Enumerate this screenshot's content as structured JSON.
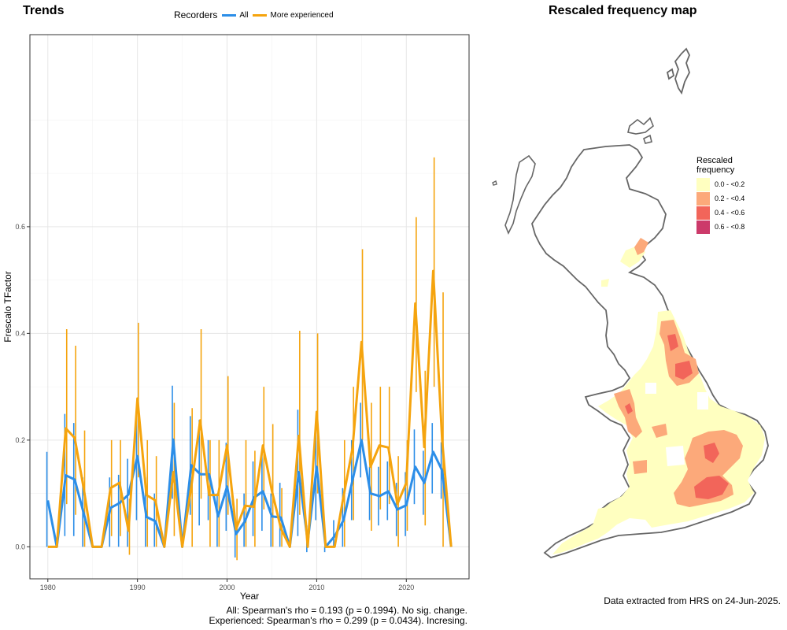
{
  "left_title": "Trends",
  "right_title": "Rescaled frequency map",
  "legend": {
    "title": "Recorders",
    "entries": [
      {
        "label": "All",
        "color": "#2c8ee8"
      },
      {
        "label": "More experienced",
        "color": "#f5a40e"
      }
    ]
  },
  "stats": {
    "all": "All: Spearman's rho = 0.193 (p = 0.1994). No sig. change.",
    "experienced": "Experienced: Spearman's rho = 0.299 (p = 0.0434). Incresing."
  },
  "data_note": "Data extracted from HRS on 24-Jun-2025.",
  "map_legend": {
    "title_line1": "Rescaled",
    "title_line2": "frequency",
    "bins": [
      {
        "label": "0.0 - <0.2",
        "color": "#ffffc0"
      },
      {
        "label": "0.2 - <0.4",
        "color": "#fca97a"
      },
      {
        "label": "0.4 - <0.6",
        "color": "#f2655a"
      },
      {
        "label": "0.6 - <0.8",
        "color": "#cc3a6a"
      }
    ]
  },
  "chart_data": {
    "type": "line",
    "title": "",
    "xlabel": "Year",
    "ylabel": "Frescalo TFactor",
    "xlim": [
      1978,
      2027
    ],
    "ylim": [
      -0.06,
      0.96
    ],
    "x_ticks": [
      1980,
      1990,
      2000,
      2010,
      2020
    ],
    "y_ticks": [
      0.0,
      0.2,
      0.4,
      0.6
    ],
    "y_tick_labels": [
      "0.0",
      "0.2",
      "0.4",
      "0.6"
    ],
    "grid": true,
    "legend_position": "top",
    "x": [
      1980,
      1981,
      1982,
      1983,
      1984,
      1985,
      1986,
      1987,
      1988,
      1989,
      1990,
      1991,
      1992,
      1993,
      1994,
      1995,
      1996,
      1997,
      1998,
      1999,
      2000,
      2001,
      2002,
      2003,
      2004,
      2005,
      2006,
      2007,
      2008,
      2009,
      2010,
      2011,
      2012,
      2013,
      2014,
      2015,
      2016,
      2017,
      2018,
      2019,
      2020,
      2021,
      2022,
      2023,
      2024,
      2025
    ],
    "series": [
      {
        "name": "All",
        "color": "#2c8ee8",
        "values": [
          0.087,
          0.0,
          0.134,
          0.126,
          0.063,
          0.0,
          0.0,
          0.073,
          0.082,
          0.098,
          0.17,
          0.056,
          0.048,
          0.0,
          0.201,
          0.0,
          0.153,
          0.136,
          0.136,
          0.057,
          0.113,
          0.024,
          0.048,
          0.092,
          0.104,
          0.057,
          0.055,
          0.0,
          0.14,
          0.01,
          0.15,
          0.0,
          0.02,
          0.05,
          0.125,
          0.2,
          0.1,
          0.095,
          0.104,
          0.07,
          0.078,
          0.15,
          0.12,
          0.178,
          0.143,
          0.0
        ],
        "lower": [
          0.0,
          0.0,
          0.02,
          0.02,
          0.0,
          0.0,
          0.0,
          0.0,
          0.0,
          0.0,
          0.05,
          0.0,
          0.0,
          0.0,
          0.09,
          0.0,
          0.06,
          0.04,
          0.05,
          0.0,
          0.03,
          -0.02,
          0.0,
          0.02,
          0.03,
          0.0,
          0.0,
          0.0,
          0.02,
          -0.01,
          0.05,
          -0.01,
          0.0,
          0.0,
          0.05,
          0.13,
          0.05,
          0.04,
          0.05,
          0.02,
          0.02,
          0.08,
          0.06,
          0.1,
          0.09,
          0.0
        ],
        "upper": [
          0.178,
          0.0,
          0.249,
          0.232,
          0.13,
          0.0,
          0.0,
          0.13,
          0.135,
          0.165,
          0.26,
          0.13,
          0.1,
          0.0,
          0.302,
          0.0,
          0.245,
          0.238,
          0.2,
          0.1,
          0.195,
          0.06,
          0.1,
          0.16,
          0.18,
          0.1,
          0.12,
          0.0,
          0.257,
          0.04,
          0.225,
          0.0,
          0.05,
          0.11,
          0.2,
          0.27,
          0.15,
          0.15,
          0.16,
          0.12,
          0.14,
          0.22,
          0.18,
          0.232,
          0.196,
          0.0
        ]
      },
      {
        "name": "More experienced",
        "color": "#f5a40e",
        "values": [
          0.0,
          0.0,
          0.222,
          0.204,
          0.11,
          0.0,
          0.0,
          0.11,
          0.12,
          0.03,
          0.278,
          0.097,
          0.087,
          0.0,
          0.14,
          0.0,
          0.112,
          0.237,
          0.097,
          0.097,
          0.19,
          0.033,
          0.077,
          0.075,
          0.19,
          0.105,
          0.035,
          0.0,
          0.208,
          0.0,
          0.253,
          0.0,
          0.0,
          0.095,
          0.185,
          0.384,
          0.15,
          0.19,
          0.186,
          0.08,
          0.12,
          0.456,
          0.187,
          0.517,
          0.2,
          0.0
        ],
        "lower": [
          0.0,
          0.0,
          0.08,
          0.06,
          0.0,
          0.0,
          0.0,
          0.02,
          0.02,
          -0.015,
          0.13,
          0.0,
          0.0,
          0.0,
          0.02,
          0.0,
          0.0,
          0.09,
          0.0,
          0.0,
          0.06,
          -0.025,
          0.0,
          0.0,
          0.07,
          0.0,
          0.0,
          0.0,
          0.06,
          0.0,
          0.1,
          0.0,
          0.0,
          0.0,
          0.05,
          0.2,
          0.03,
          0.07,
          0.08,
          0.0,
          0.03,
          0.29,
          0.04,
          0.3,
          0.0,
          0.0
        ],
        "upper": [
          0.0,
          0.0,
          0.408,
          0.377,
          0.218,
          0.0,
          0.0,
          0.2,
          0.2,
          0.09,
          0.42,
          0.2,
          0.17,
          0.0,
          0.27,
          0.0,
          0.26,
          0.408,
          0.2,
          0.2,
          0.32,
          0.09,
          0.2,
          0.18,
          0.3,
          0.23,
          0.11,
          0.0,
          0.405,
          0.0,
          0.4,
          0.0,
          0.0,
          0.2,
          0.3,
          0.558,
          0.27,
          0.3,
          0.3,
          0.17,
          0.2,
          0.618,
          0.33,
          0.73,
          0.477,
          0.0
        ]
      }
    ]
  }
}
